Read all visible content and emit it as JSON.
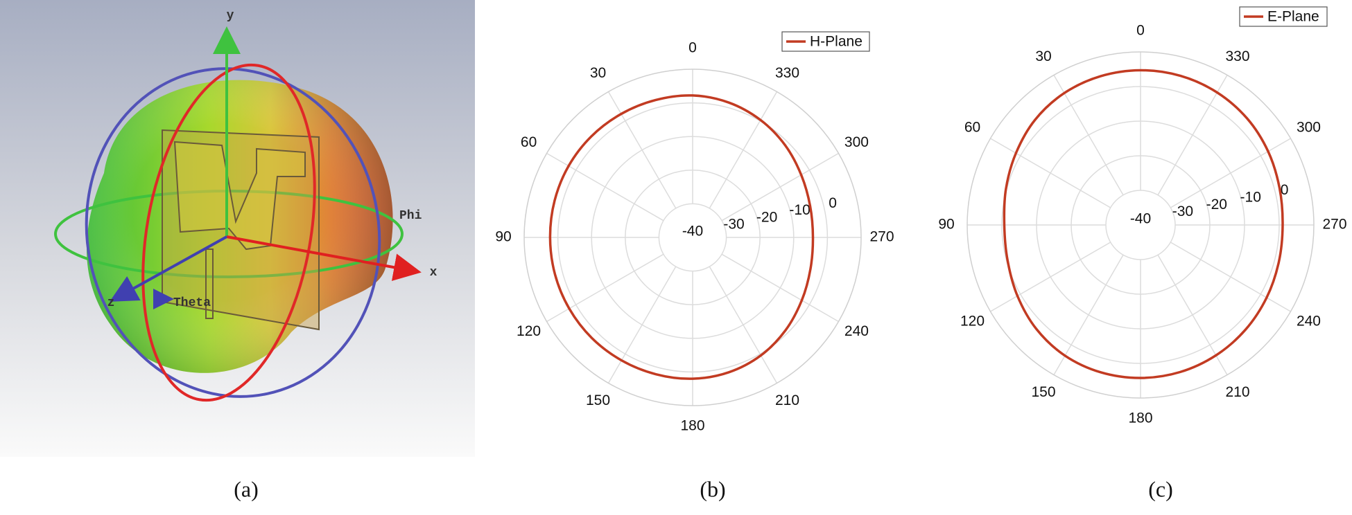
{
  "pattern_3d": {
    "axis_labels": [
      "y",
      "x",
      "z"
    ],
    "angle_labels": [
      "Phi",
      "Theta"
    ],
    "caption": "(a)"
  },
  "chart_data": [
    {
      "type": "polar",
      "caption": "(b)",
      "theta": [
        0,
        15,
        30,
        45,
        60,
        75,
        90,
        105,
        120,
        135,
        150,
        165,
        180,
        195,
        210,
        225,
        240,
        255,
        270,
        285,
        300,
        315,
        330,
        345
      ],
      "series": [
        {
          "name": "H-Plane",
          "color": "#c23b22",
          "values": [
            2.2,
            2.3,
            2.4,
            2.5,
            2.5,
            2.4,
            2.3,
            2.3,
            2.3,
            2.3,
            2.2,
            2.1,
            2.0,
            1.5,
            0.5,
            -1.0,
            -2.6,
            -3.8,
            -4.3,
            -3.9,
            -2.8,
            -1.2,
            0.3,
            1.5
          ]
        }
      ],
      "rlim": [
        -40,
        10
      ],
      "rticks": [
        -40,
        -30,
        -20,
        -10,
        0
      ],
      "thetaticks": [
        0,
        30,
        60,
        90,
        120,
        150,
        180,
        210,
        240,
        270,
        300,
        330
      ],
      "grid": true,
      "legend": "top-right"
    },
    {
      "type": "polar",
      "caption": "(c)",
      "theta": [
        0,
        15,
        30,
        45,
        60,
        75,
        90,
        105,
        120,
        135,
        150,
        165,
        180,
        195,
        210,
        225,
        240,
        255,
        270,
        285,
        300,
        315,
        330,
        345
      ],
      "series": [
        {
          "name": "E-Plane",
          "color": "#c23b22",
          "values": [
            4.7,
            4.5,
            4.0,
            3.0,
            1.5,
            0.2,
            -0.7,
            -0.3,
            1.0,
            2.5,
            3.6,
            4.1,
            4.2,
            4.0,
            3.5,
            2.8,
            2.0,
            1.3,
            1.0,
            1.5,
            2.5,
            3.5,
            4.2,
            4.6
          ]
        }
      ],
      "rlim": [
        -40,
        10
      ],
      "rticks": [
        -40,
        -30,
        -20,
        -10,
        0
      ],
      "thetaticks": [
        0,
        30,
        60,
        90,
        120,
        150,
        180,
        210,
        240,
        270,
        300,
        330
      ],
      "grid": true,
      "legend": "top-right"
    }
  ]
}
